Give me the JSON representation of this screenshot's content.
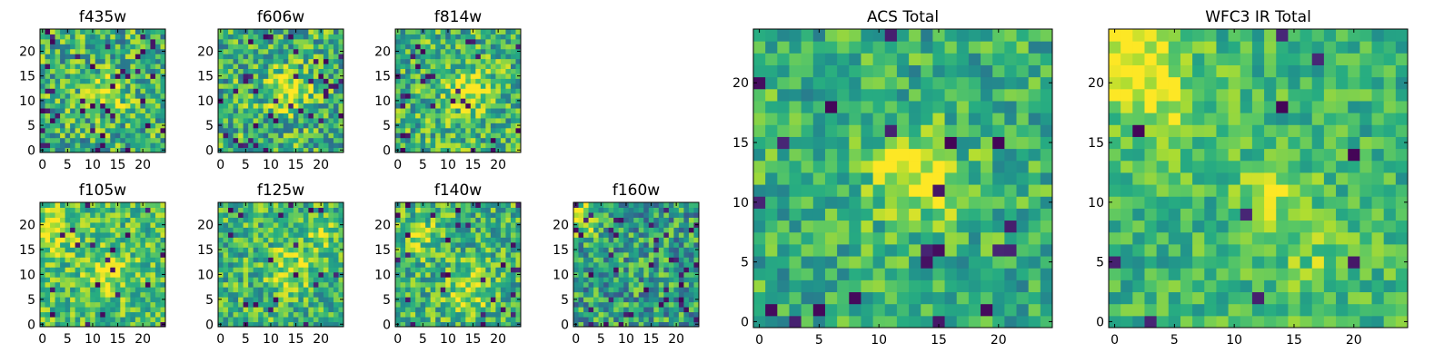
{
  "figure": {
    "colormap": "viridis",
    "color_range": [
      0,
      1
    ],
    "image_size": [
      25,
      25
    ]
  },
  "chart_data": [
    {
      "type": "heatmap",
      "title": "f435w",
      "x_ticks": [
        "0",
        "5",
        "10",
        "15",
        "20"
      ],
      "y_ticks": [
        "0",
        "5",
        "10",
        "15",
        "20"
      ],
      "xlim": [
        -0.5,
        24.5
      ],
      "ylim": [
        -0.5,
        24.5
      ],
      "seed": 11,
      "base": 0.64,
      "noise": 0.3,
      "blobs": [
        {
          "x": 13,
          "y": 12,
          "r": 2.5,
          "a": 0.3
        }
      ],
      "dark_rate": 0.06
    },
    {
      "type": "heatmap",
      "title": "f606w",
      "x_ticks": [
        "0",
        "5",
        "10",
        "15",
        "20"
      ],
      "y_ticks": [
        "0",
        "5",
        "10",
        "15",
        "20"
      ],
      "xlim": [
        -0.5,
        24.5
      ],
      "ylim": [
        -0.5,
        24.5
      ],
      "seed": 23,
      "base": 0.64,
      "noise": 0.3,
      "blobs": [
        {
          "x": 13,
          "y": 12,
          "r": 3,
          "a": 0.35
        }
      ],
      "dark_rate": 0.05
    },
    {
      "type": "heatmap",
      "title": "f814w",
      "x_ticks": [
        "0",
        "5",
        "10",
        "15",
        "20"
      ],
      "y_ticks": [
        "0",
        "5",
        "10",
        "15",
        "20"
      ],
      "xlim": [
        -0.5,
        24.5
      ],
      "ylim": [
        -0.5,
        24.5
      ],
      "seed": 37,
      "base": 0.66,
      "noise": 0.28,
      "blobs": [
        {
          "x": 14,
          "y": 12,
          "r": 3,
          "a": 0.3
        }
      ],
      "dark_rate": 0.05
    },
    {
      "type": "heatmap",
      "title": "f105w",
      "x_ticks": [
        "0",
        "5",
        "10",
        "15",
        "20"
      ],
      "y_ticks": [
        "0",
        "5",
        "10",
        "15",
        "20"
      ],
      "xlim": [
        -0.5,
        24.5
      ],
      "ylim": [
        -0.5,
        24.5
      ],
      "seed": 41,
      "base": 0.7,
      "noise": 0.24,
      "blobs": [
        {
          "x": 2,
          "y": 19,
          "r": 3,
          "a": 0.25
        },
        {
          "x": 13,
          "y": 10,
          "r": 3,
          "a": 0.2
        }
      ],
      "dark_rate": 0.03
    },
    {
      "type": "heatmap",
      "title": "f125w",
      "x_ticks": [
        "0",
        "5",
        "10",
        "15",
        "20"
      ],
      "y_ticks": [
        "0",
        "5",
        "10",
        "15",
        "20"
      ],
      "xlim": [
        -0.5,
        24.5
      ],
      "ylim": [
        -0.5,
        24.5
      ],
      "seed": 53,
      "base": 0.66,
      "noise": 0.26,
      "blobs": [
        {
          "x": 14,
          "y": 11,
          "r": 3,
          "a": 0.25
        },
        {
          "x": 20,
          "y": 18,
          "r": 3,
          "a": 0.15
        }
      ],
      "dark_rate": 0.04
    },
    {
      "type": "heatmap",
      "title": "f140w",
      "x_ticks": [
        "0",
        "5",
        "10",
        "15",
        "20"
      ],
      "y_ticks": [
        "0",
        "5",
        "10",
        "15",
        "20"
      ],
      "xlim": [
        -0.5,
        24.5
      ],
      "ylim": [
        -0.5,
        24.5
      ],
      "seed": 67,
      "base": 0.66,
      "noise": 0.26,
      "blobs": [
        {
          "x": 14,
          "y": 7,
          "r": 3,
          "a": 0.25
        },
        {
          "x": 5,
          "y": 18,
          "r": 3,
          "a": 0.15
        }
      ],
      "dark_rate": 0.04
    },
    {
      "type": "heatmap",
      "title": "f160w",
      "x_ticks": [
        "0",
        "5",
        "10",
        "15",
        "20"
      ],
      "y_ticks": [
        "0",
        "5",
        "10",
        "15",
        "20"
      ],
      "xlim": [
        -0.5,
        24.5
      ],
      "ylim": [
        -0.5,
        24.5
      ],
      "seed": 79,
      "base": 0.56,
      "noise": 0.3,
      "blobs": [
        {
          "x": 1,
          "y": 22,
          "r": 3,
          "a": 0.35
        }
      ],
      "dark_rate": 0.07
    },
    {
      "type": "heatmap",
      "title": "ACS Total",
      "x_ticks": [
        "0",
        "5",
        "10",
        "15",
        "20"
      ],
      "y_ticks": [
        "0",
        "5",
        "10",
        "15",
        "20"
      ],
      "xlim": [
        -0.5,
        24.5
      ],
      "ylim": [
        -0.5,
        24.5
      ],
      "seed": 91,
      "base": 0.64,
      "noise": 0.22,
      "blobs": [
        {
          "x": 13,
          "y": 12,
          "r": 2.5,
          "a": 0.4
        }
      ],
      "dark_rate": 0.035
    },
    {
      "type": "heatmap",
      "title": "WFC3 IR Total",
      "x_ticks": [
        "0",
        "5",
        "10",
        "15",
        "20"
      ],
      "y_ticks": [
        "0",
        "5",
        "10",
        "15",
        "20"
      ],
      "xlim": [
        -0.5,
        24.5
      ],
      "ylim": [
        -0.5,
        24.5
      ],
      "seed": 103,
      "base": 0.66,
      "noise": 0.18,
      "blobs": [
        {
          "x": 1,
          "y": 23,
          "r": 3,
          "a": 0.35
        },
        {
          "x": 4,
          "y": 18,
          "r": 3,
          "a": 0.2
        },
        {
          "x": 13,
          "y": 11,
          "r": 2,
          "a": 0.25
        },
        {
          "x": 17,
          "y": 6,
          "r": 3,
          "a": 0.15
        }
      ],
      "dark_rate": 0.03
    }
  ]
}
